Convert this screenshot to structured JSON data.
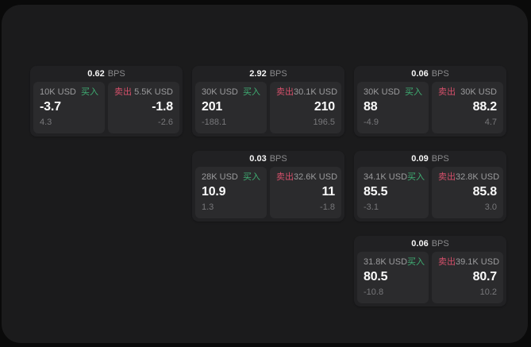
{
  "colors": {
    "outer_background": "#0a0a0a",
    "surface_background": "#1b1b1c",
    "card_background": "#212123",
    "tile_background": "#2b2b2d",
    "buy_accent": "#3fae73",
    "sell_accent": "#d6506b"
  },
  "cards": [
    {
      "bps_value": "0.62",
      "bps_unit": "BPS",
      "buy": {
        "size": "10K USD",
        "side": "买入",
        "price": "-3.7",
        "change": "4.3"
      },
      "sell": {
        "side": "卖出",
        "size": "5.5K USD",
        "price": "-1.8",
        "change": "-2.6"
      }
    },
    {
      "bps_value": "2.92",
      "bps_unit": "BPS",
      "buy": {
        "size": "30K USD",
        "side": "买入",
        "price": "201",
        "change": "-188.1"
      },
      "sell": {
        "side": "卖出",
        "size": "30.1K USD",
        "price": "210",
        "change": "196.5"
      }
    },
    {
      "bps_value": "0.06",
      "bps_unit": "BPS",
      "buy": {
        "size": "30K USD",
        "side": "买入",
        "price": "88",
        "change": "-4.9"
      },
      "sell": {
        "side": "卖出",
        "size": "30K USD",
        "price": "88.2",
        "change": "4.7"
      }
    },
    {
      "bps_value": "0.03",
      "bps_unit": "BPS",
      "buy": {
        "size": "28K USD",
        "side": "买入",
        "price": "10.9",
        "change": "1.3"
      },
      "sell": {
        "side": "卖出",
        "size": "32.6K USD",
        "price": "11",
        "change": "-1.8"
      }
    },
    {
      "bps_value": "0.09",
      "bps_unit": "BPS",
      "buy": {
        "size": "34.1K USD",
        "side": "买入",
        "price": "85.5",
        "change": "-3.1"
      },
      "sell": {
        "side": "卖出",
        "size": "32.8K USD",
        "price": "85.8",
        "change": "3.0"
      }
    },
    {
      "bps_value": "0.06",
      "bps_unit": "BPS",
      "buy": {
        "size": "31.8K USD",
        "side": "买入",
        "price": "80.5",
        "change": "-10.8"
      },
      "sell": {
        "side": "卖出",
        "size": "39.1K USD",
        "price": "80.7",
        "change": "10.2"
      }
    }
  ]
}
